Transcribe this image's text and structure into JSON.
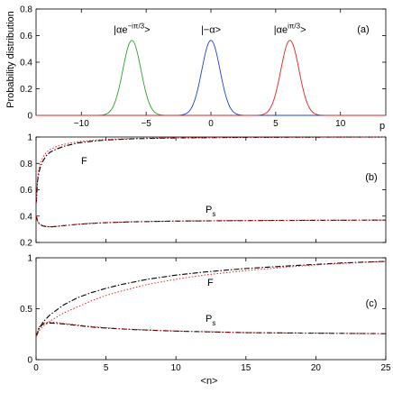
{
  "figure": {
    "panel_labels": [
      "(a)",
      "(b)",
      "(c)"
    ]
  },
  "chart_data": [
    {
      "type": "line",
      "panel": "(a)",
      "xlabel": "p",
      "ylabel": "Probability distribution",
      "xlim": [
        -13.5,
        13.5
      ],
      "ylim": [
        0,
        0.8
      ],
      "xticks": [
        -10,
        -5,
        0,
        5,
        10
      ],
      "yticks": [
        0,
        0.2,
        0.4,
        0.6,
        0.8
      ],
      "xtick_labels": [
        "−10",
        "−5",
        "0",
        "5",
        "10"
      ],
      "ytick_labels": [
        "0",
        "0.2",
        "0.4",
        "0.6",
        "0.8"
      ],
      "grid": false,
      "series": [
        {
          "name": "|αe^{−iπ/3}>",
          "label_base": "|αe",
          "label_sup": "−iπ/3",
          "label_end": ">",
          "color": "#2ca02c",
          "center": -6.1,
          "peak": 0.565,
          "sigma": 0.7
        },
        {
          "name": "|−α>",
          "label_base": "|−α>",
          "label_sup": "",
          "label_end": "",
          "color": "#1f3fd6",
          "center": 0.0,
          "peak": 0.565,
          "sigma": 0.7
        },
        {
          "name": "|αe^{iπ/3}>",
          "label_base": "|αe",
          "label_sup": "iπ/3",
          "label_end": ">",
          "color": "#e02020",
          "center": 6.1,
          "peak": 0.565,
          "sigma": 0.7
        }
      ]
    },
    {
      "type": "line",
      "panel": "(b)",
      "xlabel": "",
      "ylabel": "",
      "xlim": [
        0,
        25
      ],
      "ylim": [
        0.2,
        1.0
      ],
      "xticks": [
        0,
        5,
        10,
        15,
        20,
        25
      ],
      "yticks": [
        0.2,
        0.4,
        0.6,
        0.8,
        1.0
      ],
      "ytick_labels": [
        "0.2",
        "0.4",
        "0.6",
        "0.8",
        "1"
      ],
      "grid": false,
      "annotations": {
        "F": "F",
        "Ps": "P",
        "Ps_sub": "s"
      },
      "series": [
        {
          "name": "F",
          "style": "dashed-black",
          "x": [
            0.02,
            0.1,
            0.2,
            0.3,
            0.5,
            0.75,
            1,
            1.5,
            2,
            3,
            4,
            5,
            7,
            10,
            15,
            20,
            25
          ],
          "y": [
            0.5,
            0.66,
            0.73,
            0.77,
            0.82,
            0.86,
            0.885,
            0.91,
            0.93,
            0.955,
            0.968,
            0.977,
            0.987,
            0.993,
            0.997,
            0.999,
            1.0
          ]
        },
        {
          "name": "F",
          "style": "dotted-red",
          "x": [
            0.02,
            0.1,
            0.2,
            0.3,
            0.5,
            0.75,
            1,
            1.5,
            2,
            3,
            4,
            5,
            7,
            10,
            15,
            20,
            25
          ],
          "y": [
            0.5,
            0.68,
            0.76,
            0.8,
            0.85,
            0.885,
            0.905,
            0.93,
            0.945,
            0.965,
            0.975,
            0.982,
            0.99,
            0.995,
            0.998,
            0.999,
            1.0
          ]
        },
        {
          "name": "Ps",
          "style": "dashed-black",
          "x": [
            0.02,
            0.1,
            0.2,
            0.3,
            0.5,
            0.75,
            1,
            1.5,
            2,
            3,
            4,
            5,
            7,
            10,
            15,
            20,
            25
          ],
          "y": [
            0.4,
            0.365,
            0.345,
            0.335,
            0.325,
            0.32,
            0.318,
            0.322,
            0.328,
            0.338,
            0.345,
            0.35,
            0.357,
            0.362,
            0.366,
            0.368,
            0.37
          ]
        },
        {
          "name": "Ps",
          "style": "dotted-red",
          "x": [
            0.02,
            0.1,
            0.2,
            0.3,
            0.5,
            0.75,
            1,
            1.5,
            2,
            3,
            4,
            5,
            7,
            10,
            15,
            20,
            25
          ],
          "y": [
            0.4,
            0.37,
            0.35,
            0.338,
            0.328,
            0.322,
            0.32,
            0.323,
            0.329,
            0.339,
            0.346,
            0.351,
            0.358,
            0.363,
            0.367,
            0.369,
            0.37
          ]
        }
      ]
    },
    {
      "type": "line",
      "panel": "(c)",
      "xlabel": "<n>",
      "ylabel": "",
      "xlim": [
        0,
        25
      ],
      "ylim": [
        0,
        1
      ],
      "xticks": [
        0,
        5,
        10,
        15,
        20,
        25
      ],
      "yticks": [
        0,
        0.5,
        1
      ],
      "xtick_labels": [
        "0",
        "5",
        "10",
        "15",
        "20",
        "25"
      ],
      "ytick_labels": [
        "0",
        "0.5",
        "1"
      ],
      "grid": false,
      "annotations": {
        "F": "F",
        "Ps": "P",
        "Ps_sub": "s"
      },
      "series": [
        {
          "name": "F",
          "style": "dashed-black",
          "x": [
            0.02,
            0.2,
            0.5,
            1,
            2,
            3,
            4,
            5,
            6,
            8,
            10,
            12,
            15,
            18,
            20,
            22,
            25
          ],
          "y": [
            0.23,
            0.3,
            0.37,
            0.44,
            0.54,
            0.61,
            0.66,
            0.7,
            0.735,
            0.79,
            0.83,
            0.86,
            0.895,
            0.92,
            0.935,
            0.95,
            0.965
          ]
        },
        {
          "name": "F",
          "style": "dotted-red",
          "x": [
            0.02,
            0.2,
            0.5,
            1,
            2,
            3,
            4,
            5,
            6,
            8,
            10,
            12,
            15,
            18,
            20,
            22,
            25
          ],
          "y": [
            0.23,
            0.28,
            0.33,
            0.38,
            0.46,
            0.52,
            0.58,
            0.63,
            0.67,
            0.74,
            0.79,
            0.83,
            0.875,
            0.91,
            0.93,
            0.945,
            0.965
          ]
        },
        {
          "name": "Ps",
          "style": "dashed-black",
          "x": [
            0.02,
            0.2,
            0.5,
            1,
            1.5,
            2,
            3,
            4,
            5,
            7,
            10,
            15,
            20,
            25
          ],
          "y": [
            0.23,
            0.31,
            0.35,
            0.36,
            0.355,
            0.35,
            0.335,
            0.32,
            0.31,
            0.295,
            0.28,
            0.265,
            0.26,
            0.255
          ]
        },
        {
          "name": "Ps",
          "style": "dotted-red",
          "x": [
            0.02,
            0.2,
            0.5,
            1,
            1.5,
            2,
            3,
            4,
            5,
            7,
            10,
            15,
            20,
            25
          ],
          "y": [
            0.23,
            0.32,
            0.36,
            0.37,
            0.365,
            0.355,
            0.34,
            0.325,
            0.313,
            0.297,
            0.282,
            0.266,
            0.26,
            0.255
          ]
        }
      ]
    }
  ]
}
